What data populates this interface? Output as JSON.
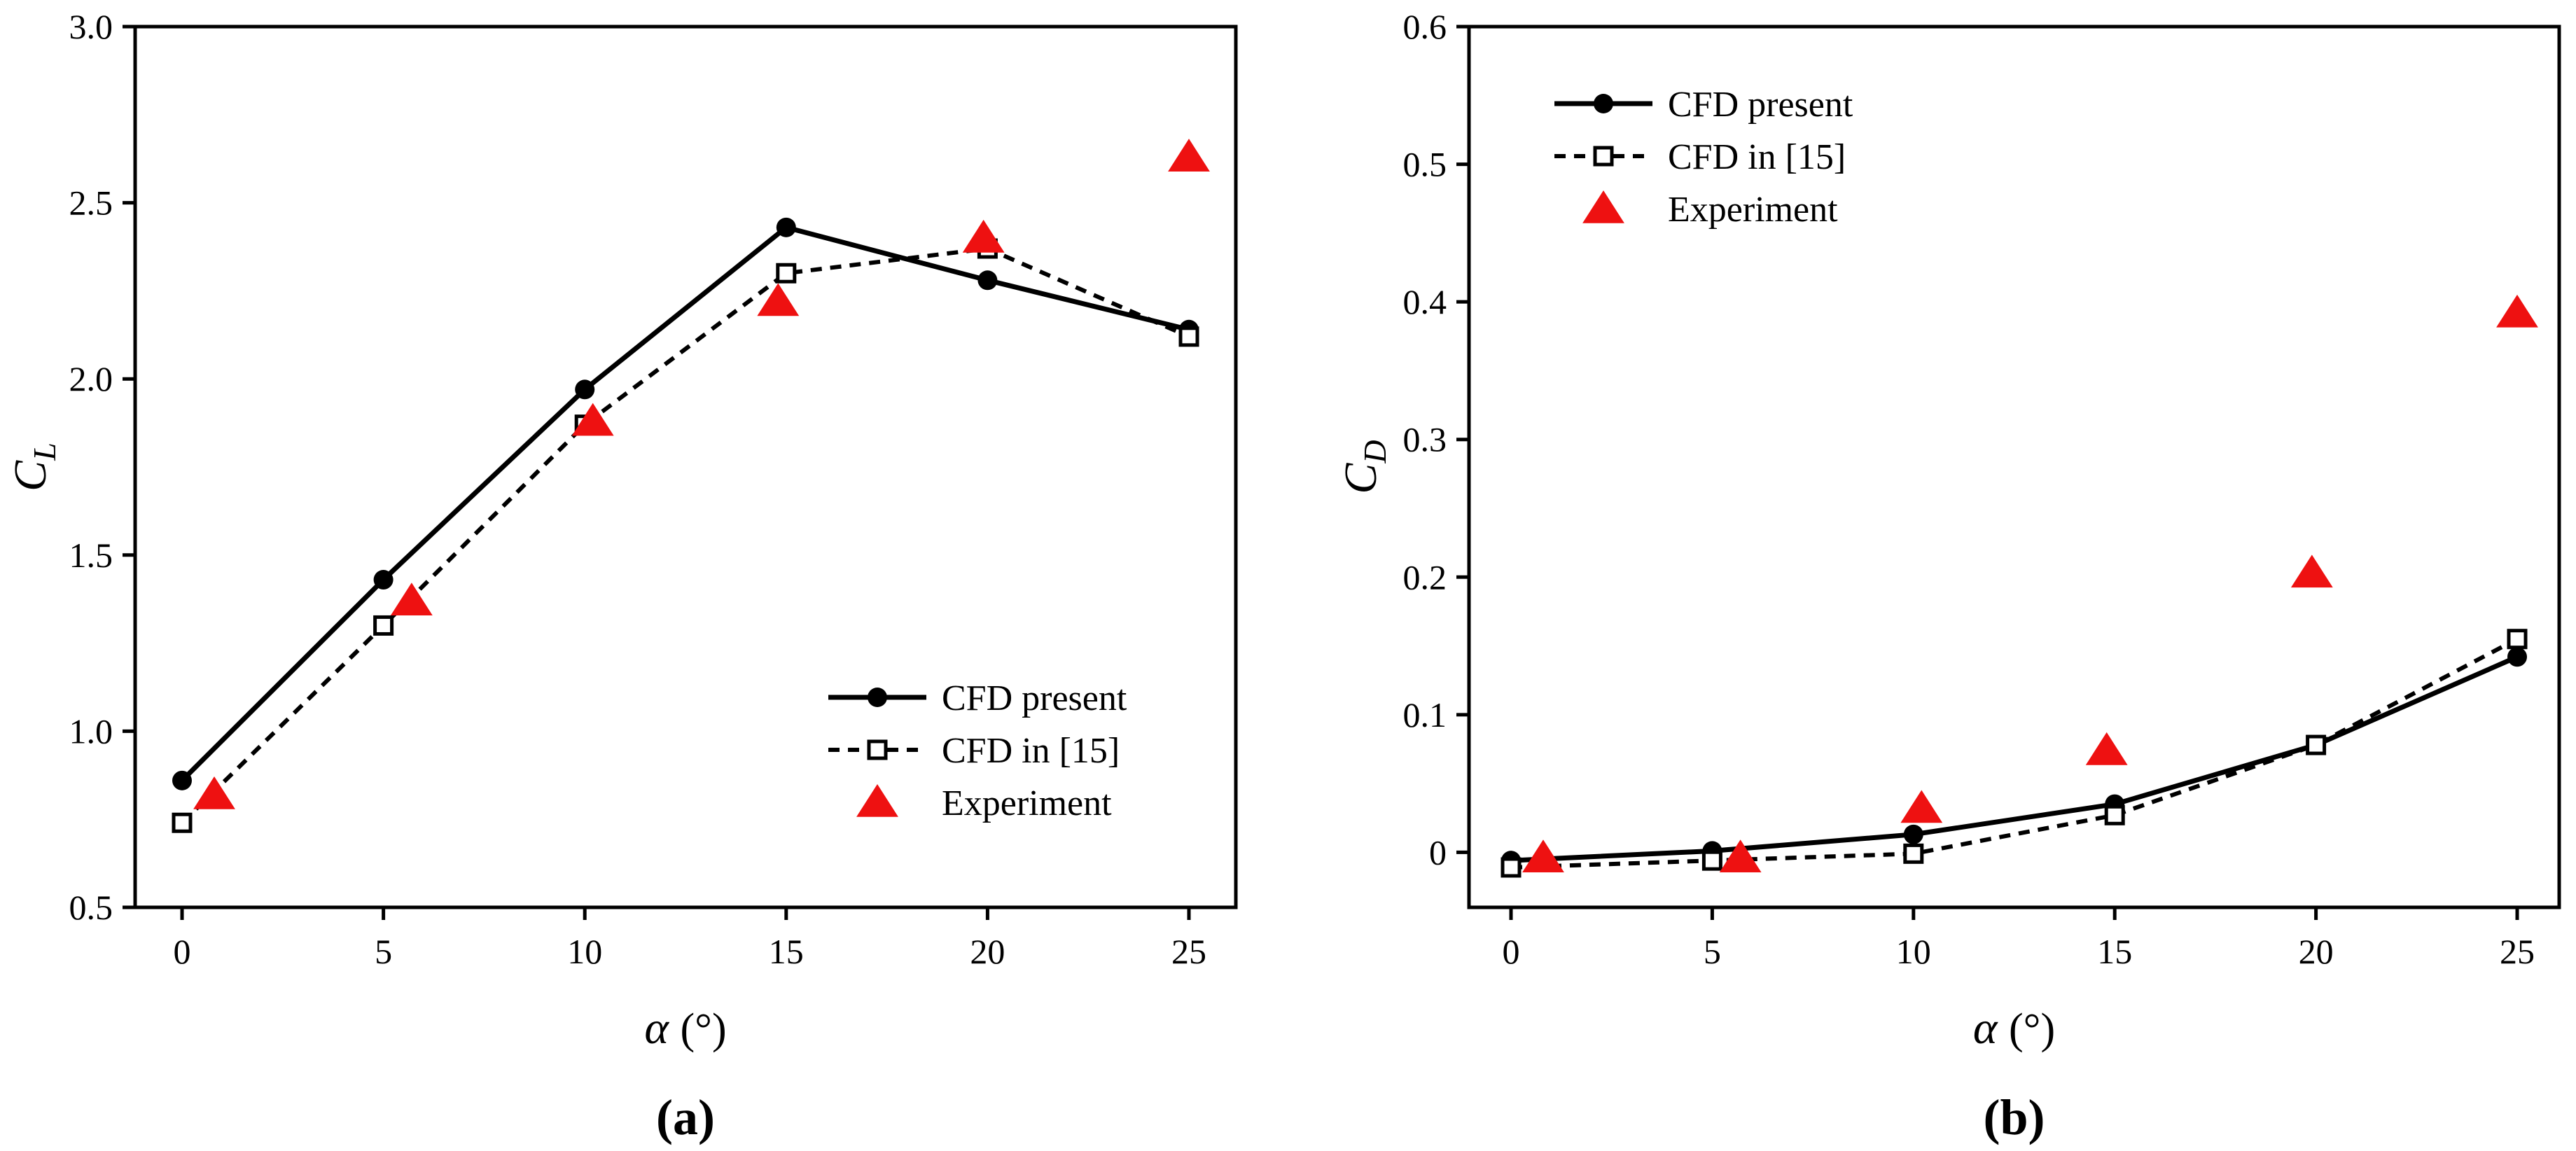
{
  "chart_data": [
    {
      "type": "line",
      "panel_label": "(a)",
      "ylabel_main": "C",
      "ylabel_sub": "L",
      "xlabel_symbol": "α",
      "xlabel_unit": "(°)",
      "xlim": [
        0,
        25
      ],
      "ylim": [
        0.5,
        3.0
      ],
      "xticks": [
        "0",
        "5",
        "10",
        "15",
        "20",
        "25"
      ],
      "xtick_values": [
        0,
        5,
        10,
        15,
        20,
        25
      ],
      "yticks": [
        "0.5",
        "1.0",
        "1.5",
        "2.0",
        "2.5",
        "3.0"
      ],
      "ytick_values": [
        0.5,
        1.0,
        1.5,
        2.0,
        2.5,
        3.0
      ],
      "legend_position": "bottom-right",
      "series": [
        {
          "name": "CFD present",
          "style": "solid-circle",
          "x": [
            0,
            5,
            10,
            15,
            20,
            25
          ],
          "y": [
            0.86,
            1.43,
            1.97,
            2.43,
            2.28,
            2.14
          ]
        },
        {
          "name": "CFD in [15]",
          "style": "dash-square",
          "x": [
            0,
            5,
            10,
            15,
            20,
            25
          ],
          "y": [
            0.74,
            1.3,
            1.87,
            2.3,
            2.37,
            2.12
          ]
        },
        {
          "name": "Experiment",
          "style": "triangle",
          "x": [
            0.8,
            5.7,
            10.2,
            14.8,
            19.9,
            25
          ],
          "y": [
            0.82,
            1.37,
            1.88,
            2.22,
            2.4,
            2.63
          ]
        }
      ]
    },
    {
      "type": "line",
      "panel_label": "(b)",
      "ylabel_main": "C",
      "ylabel_sub": "D",
      "xlabel_symbol": "α",
      "xlabel_unit": "(°)",
      "xlim": [
        0,
        25
      ],
      "ylim": [
        -0.04,
        0.6
      ],
      "xticks": [
        "0",
        "5",
        "10",
        "15",
        "20",
        "25"
      ],
      "xtick_values": [
        0,
        5,
        10,
        15,
        20,
        25
      ],
      "yticks": [
        "0",
        "0.1",
        "0.2",
        "0.3",
        "0.4",
        "0.5",
        "0.6"
      ],
      "ytick_values": [
        0,
        0.1,
        0.2,
        0.3,
        0.4,
        0.5,
        0.6
      ],
      "legend_position": "top-left",
      "series": [
        {
          "name": "CFD present",
          "style": "solid-circle",
          "x": [
            0,
            5,
            10,
            15,
            20,
            25
          ],
          "y": [
            -0.006,
            0.001,
            0.013,
            0.035,
            0.078,
            0.142
          ]
        },
        {
          "name": "CFD in [15]",
          "style": "dash-square",
          "x": [
            0,
            5,
            10,
            15,
            20,
            25
          ],
          "y": [
            -0.011,
            -0.006,
            -0.001,
            0.027,
            0.078,
            0.155
          ]
        },
        {
          "name": "Experiment",
          "style": "triangle",
          "x": [
            0.8,
            5.7,
            10.2,
            14.8,
            19.9,
            25
          ],
          "y": [
            -0.004,
            -0.004,
            0.032,
            0.074,
            0.203,
            0.392
          ]
        }
      ]
    }
  ]
}
